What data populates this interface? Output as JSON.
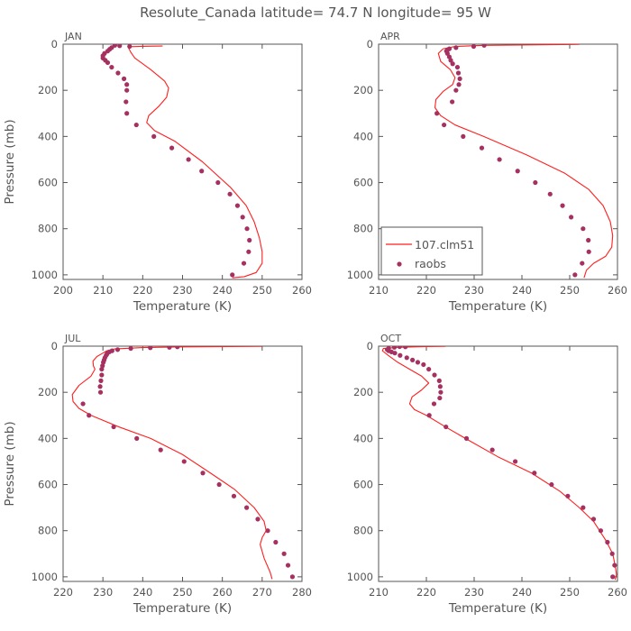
{
  "figure": {
    "title": "Resolute_Canada   latitude= 74.7 N longitude= 95 W",
    "model_color": "#ff1f1f",
    "obs_color": "#a6305f",
    "axis_color": "#555555",
    "legend": {
      "model_label": "107.clm51",
      "obs_label": "raobs"
    }
  },
  "chart_data": [
    {
      "type": "line",
      "panel": "JAN",
      "title": "JAN",
      "xlabel": "Temperature (K)",
      "ylabel": "Pressure (mb)",
      "xlim": [
        200,
        260
      ],
      "ylim": [
        0,
        1020
      ],
      "y_inverted": true,
      "xticks": [
        200,
        210,
        220,
        230,
        240,
        250,
        260
      ],
      "yticks": [
        0,
        200,
        400,
        600,
        800,
        1000
      ],
      "series": [
        {
          "name": "107.clm51",
          "kind": "line",
          "points": [
            [
              225,
              8
            ],
            [
              221,
              9
            ],
            [
              217,
              11
            ],
            [
              216.5,
              18
            ],
            [
              217,
              35
            ],
            [
              218,
              60
            ],
            [
              222,
              110
            ],
            [
              225.5,
              160
            ],
            [
              226.5,
              190
            ],
            [
              226,
              230
            ],
            [
              224,
              270
            ],
            [
              221.5,
              310
            ],
            [
              221,
              340
            ],
            [
              223,
              375
            ],
            [
              228,
              420
            ],
            [
              235,
              510
            ],
            [
              242,
              620
            ],
            [
              246,
              700
            ],
            [
              248,
              770
            ],
            [
              249.3,
              840
            ],
            [
              250,
              900
            ],
            [
              250,
              950
            ],
            [
              248.5,
              990
            ],
            [
              245.5,
              1008
            ],
            [
              242.5,
              1013
            ]
          ]
        },
        {
          "name": "raobs",
          "kind": "scatter",
          "points": [
            [
              216.7,
              10
            ],
            [
              214.2,
              7
            ],
            [
              213.0,
              5
            ],
            [
              212.2,
              15
            ],
            [
              211.7,
              22
            ],
            [
              211.2,
              30
            ],
            [
              210.4,
              40
            ],
            [
              210.0,
              50
            ],
            [
              210.0,
              60
            ],
            [
              210.6,
              70
            ],
            [
              211.2,
              80
            ],
            [
              212.2,
              100
            ],
            [
              213.8,
              125
            ],
            [
              215.3,
              150
            ],
            [
              216.0,
              175
            ],
            [
              216.0,
              200
            ],
            [
              215.8,
              250
            ],
            [
              216.0,
              300
            ],
            [
              218.4,
              350
            ],
            [
              222.8,
              400
            ],
            [
              227.3,
              450
            ],
            [
              231.5,
              500
            ],
            [
              234.8,
              550
            ],
            [
              238.9,
              600
            ],
            [
              241.9,
              650
            ],
            [
              243.8,
              700
            ],
            [
              245.1,
              750
            ],
            [
              246.2,
              800
            ],
            [
              246.8,
              850
            ],
            [
              246.6,
              900
            ],
            [
              245.4,
              950
            ],
            [
              242.5,
              1000
            ]
          ]
        }
      ]
    },
    {
      "type": "line",
      "panel": "APR",
      "title": "APR",
      "xlabel": "Temperature (K)",
      "ylabel": "",
      "xlim": [
        210,
        260
      ],
      "ylim": [
        0,
        1020
      ],
      "y_inverted": true,
      "xticks": [
        210,
        220,
        230,
        240,
        250,
        260
      ],
      "yticks": [
        0,
        200,
        400,
        600,
        800,
        1000
      ],
      "series": [
        {
          "name": "107.clm51",
          "kind": "line",
          "points": [
            [
              252,
              1
            ],
            [
              232,
              5
            ],
            [
              226,
              10
            ],
            [
              223.5,
              20
            ],
            [
              222.5,
              40
            ],
            [
              223,
              75
            ],
            [
              225,
              110
            ],
            [
              226,
              145
            ],
            [
              225.5,
              175
            ],
            [
              223.5,
              205
            ],
            [
              222,
              240
            ],
            [
              221.8,
              275
            ],
            [
              223,
              310
            ],
            [
              226,
              350
            ],
            [
              232,
              400
            ],
            [
              241,
              480
            ],
            [
              249,
              560
            ],
            [
              254,
              630
            ],
            [
              257,
              700
            ],
            [
              258.5,
              770
            ],
            [
              259,
              830
            ],
            [
              258.8,
              880
            ],
            [
              257.5,
              920
            ],
            [
              255,
              950
            ],
            [
              253.5,
              980
            ],
            [
              253,
              1013
            ]
          ]
        },
        {
          "name": "raobs",
          "kind": "scatter",
          "points": [
            [
              232.1,
              5
            ],
            [
              229.9,
              10
            ],
            [
              226.2,
              15
            ],
            [
              224.8,
              20
            ],
            [
              224.4,
              25
            ],
            [
              224.2,
              30
            ],
            [
              224.4,
              40
            ],
            [
              224.8,
              55
            ],
            [
              225.1,
              70
            ],
            [
              225.5,
              85
            ],
            [
              226.5,
              100
            ],
            [
              226.7,
              125
            ],
            [
              227.0,
              150
            ],
            [
              226.8,
              175
            ],
            [
              226.2,
              200
            ],
            [
              225.4,
              250
            ],
            [
              222.2,
              300
            ],
            [
              223.7,
              350
            ],
            [
              227.7,
              400
            ],
            [
              231.6,
              450
            ],
            [
              235.3,
              500
            ],
            [
              239.1,
              550
            ],
            [
              242.8,
              600
            ],
            [
              245.9,
              650
            ],
            [
              248.5,
              700
            ],
            [
              250.3,
              750
            ],
            [
              252.8,
              800
            ],
            [
              253.9,
              850
            ],
            [
              254.0,
              900
            ],
            [
              252.6,
              950
            ],
            [
              251.1,
              1000
            ]
          ]
        }
      ]
    },
    {
      "type": "line",
      "panel": "JUL",
      "title": "JUL",
      "xlabel": "Temperature (K)",
      "ylabel": "Pressure (mb)",
      "xlim": [
        220,
        280
      ],
      "ylim": [
        0,
        1020
      ],
      "y_inverted": true,
      "xticks": [
        220,
        230,
        240,
        250,
        260,
        270,
        280
      ],
      "yticks": [
        0,
        200,
        400,
        600,
        800,
        1000
      ],
      "series": [
        {
          "name": "107.clm51",
          "kind": "line",
          "points": [
            [
              270,
              1
            ],
            [
              250,
              3
            ],
            [
              240,
              6
            ],
            [
              233,
              12
            ],
            [
              231,
              20
            ],
            [
              230,
              30
            ],
            [
              228.5,
              45
            ],
            [
              227.5,
              65
            ],
            [
              227.6,
              85
            ],
            [
              228,
              100
            ],
            [
              227,
              130
            ],
            [
              224,
              170
            ],
            [
              222.3,
              210
            ],
            [
              222.5,
              240
            ],
            [
              224,
              270
            ],
            [
              227,
              300
            ],
            [
              234,
              350
            ],
            [
              242,
              400
            ],
            [
              250,
              470
            ],
            [
              257,
              550
            ],
            [
              263,
              620
            ],
            [
              268,
              700
            ],
            [
              270.5,
              760
            ],
            [
              271,
              800
            ],
            [
              270,
              830
            ],
            [
              269.5,
              860
            ],
            [
              270.5,
              920
            ],
            [
              272,
              980
            ],
            [
              272.5,
              1010
            ]
          ]
        },
        {
          "name": "raobs",
          "kind": "scatter",
          "points": [
            [
              248.7,
              3
            ],
            [
              246.7,
              5
            ],
            [
              241.9,
              7
            ],
            [
              237.0,
              10
            ],
            [
              233.7,
              15
            ],
            [
              232.3,
              20
            ],
            [
              231.6,
              25
            ],
            [
              231.1,
              30
            ],
            [
              231.0,
              35
            ],
            [
              230.8,
              40
            ],
            [
              230.5,
              50
            ],
            [
              230.3,
              60
            ],
            [
              230.1,
              70
            ],
            [
              229.9,
              85
            ],
            [
              229.7,
              100
            ],
            [
              229.7,
              125
            ],
            [
              229.5,
              150
            ],
            [
              229.3,
              175
            ],
            [
              229.4,
              200
            ],
            [
              225.0,
              250
            ],
            [
              226.5,
              300
            ],
            [
              232.7,
              350
            ],
            [
              238.5,
              400
            ],
            [
              244.5,
              450
            ],
            [
              250.4,
              500
            ],
            [
              255.1,
              550
            ],
            [
              259.2,
              600
            ],
            [
              262.9,
              650
            ],
            [
              266.1,
              700
            ],
            [
              268.9,
              750
            ],
            [
              271.4,
              800
            ],
            [
              273.4,
              850
            ],
            [
              275.5,
              900
            ],
            [
              276.5,
              950
            ],
            [
              277.6,
              1000
            ]
          ]
        }
      ]
    },
    {
      "type": "line",
      "panel": "OCT",
      "title": "OCT",
      "xlabel": "Temperature (K)",
      "ylabel": "",
      "xlim": [
        210,
        260
      ],
      "ylim": [
        0,
        1020
      ],
      "y_inverted": true,
      "xticks": [
        210,
        220,
        230,
        240,
        250,
        260
      ],
      "yticks": [
        0,
        200,
        400,
        600,
        800,
        1000
      ],
      "series": [
        {
          "name": "107.clm51",
          "kind": "line",
          "points": [
            [
              224,
              1
            ],
            [
              220,
              2
            ],
            [
              214,
              5
            ],
            [
              211,
              10
            ],
            [
              210.8,
              20
            ],
            [
              212,
              40
            ],
            [
              214,
              70
            ],
            [
              216.5,
              100
            ],
            [
              219,
              130
            ],
            [
              220.5,
              160
            ],
            [
              219,
              190
            ],
            [
              217,
              220
            ],
            [
              216.5,
              250
            ],
            [
              217.5,
              275
            ],
            [
              220,
              300
            ],
            [
              224,
              350
            ],
            [
              229,
              410
            ],
            [
              235,
              480
            ],
            [
              242,
              550
            ],
            [
              248,
              630
            ],
            [
              252,
              700
            ],
            [
              255,
              760
            ],
            [
              257.5,
              840
            ],
            [
              259,
              900
            ],
            [
              259.5,
              950
            ],
            [
              259.8,
              990
            ],
            [
              259.5,
              1013
            ]
          ]
        },
        {
          "name": "raobs",
          "kind": "scatter",
          "points": [
            [
              215.6,
              3
            ],
            [
              214.4,
              2
            ],
            [
              213.3,
              5
            ],
            [
              212.1,
              10
            ],
            [
              211.8,
              15
            ],
            [
              212.1,
              20
            ],
            [
              212.7,
              25
            ],
            [
              213.4,
              30
            ],
            [
              214.5,
              40
            ],
            [
              215.9,
              50
            ],
            [
              217.1,
              60
            ],
            [
              218.2,
              70
            ],
            [
              219.4,
              80
            ],
            [
              220.5,
              100
            ],
            [
              221.7,
              125
            ],
            [
              222.7,
              150
            ],
            [
              222.9,
              175
            ],
            [
              223.0,
              200
            ],
            [
              222.8,
              225
            ],
            [
              221.6,
              250
            ],
            [
              220.6,
              300
            ],
            [
              224.1,
              350
            ],
            [
              228.4,
              400
            ],
            [
              233.8,
              450
            ],
            [
              238.6,
              500
            ],
            [
              242.6,
              550
            ],
            [
              246.2,
              600
            ],
            [
              249.6,
              650
            ],
            [
              252.8,
              700
            ],
            [
              255.0,
              750
            ],
            [
              256.5,
              800
            ],
            [
              257.9,
              850
            ],
            [
              258.9,
              900
            ],
            [
              259.4,
              950
            ],
            [
              259.0,
              1000
            ]
          ]
        }
      ]
    }
  ]
}
